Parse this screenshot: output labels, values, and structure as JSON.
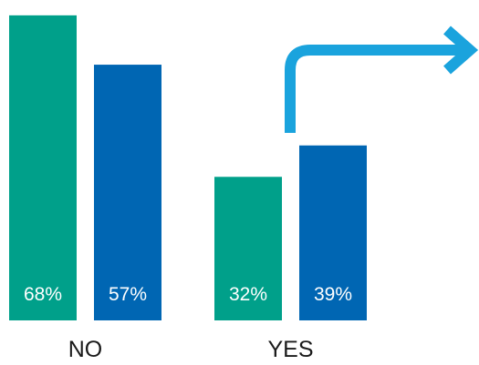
{
  "chart_data": {
    "type": "bar",
    "categories": [
      "NO",
      "YES"
    ],
    "series": [
      {
        "color": "#00a08a",
        "values": [
          68,
          32
        ]
      },
      {
        "color": "#0066b3",
        "values": [
          57,
          39
        ]
      }
    ],
    "value_suffix": "%",
    "ylim": [
      0,
      70
    ],
    "grid": false,
    "legend": "none",
    "annotation": {
      "type": "arrow",
      "color": "#1aa3dd"
    }
  }
}
